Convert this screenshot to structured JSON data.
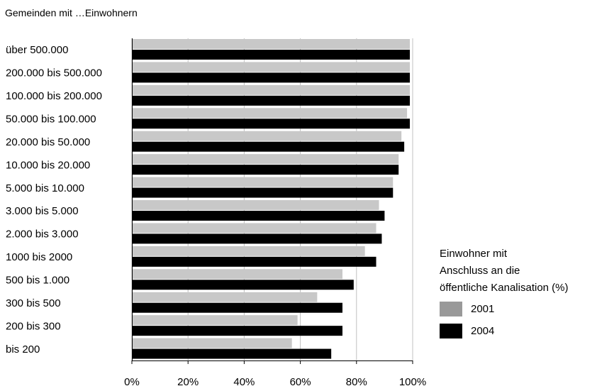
{
  "chart_data": {
    "type": "bar",
    "orientation": "horizontal",
    "title": "Gemeinden mit …Einwohnern",
    "categories": [
      "über 500.000",
      "200.000 bis 500.000",
      "100.000 bis 200.000",
      "50.000 bis 100.000",
      "20.000 bis 50.000",
      "10.000 bis 20.000",
      "5.000 bis 10.000",
      "3.000 bis 5.000",
      "2.000 bis 3.000",
      "1000 bis 2000",
      "500 bis 1.000",
      "300 bis 500",
      "200 bis 300",
      "bis 200"
    ],
    "series": [
      {
        "name": "2001",
        "color": "#c8c8c8",
        "values": [
          99,
          99,
          99,
          98,
          96,
          95,
          93,
          88,
          87,
          83,
          75,
          66,
          59,
          57
        ]
      },
      {
        "name": "2004",
        "color": "#000000",
        "values": [
          99,
          99,
          99,
          99,
          97,
          95,
          93,
          90,
          89,
          87,
          79,
          75,
          75,
          71
        ]
      }
    ],
    "xlim": [
      0,
      100
    ],
    "x_ticks": [
      "0%",
      "20%",
      "40%",
      "60%",
      "80%",
      "100%"
    ],
    "grid": "vertical",
    "legend_title": [
      "Einwohner mit",
      "Anschluss an die",
      "öffentliche Kanalisation (%)"
    ],
    "legend_placement": "right",
    "legend_swatch_colors": {
      "2001": "#999999",
      "2004": "#000000"
    }
  }
}
